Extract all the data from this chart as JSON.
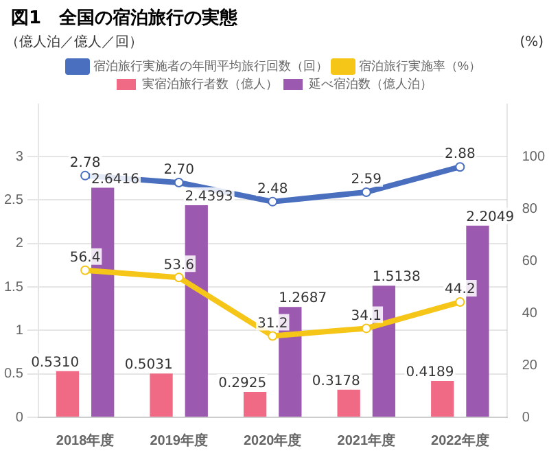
{
  "chart_data": {
    "type": "bar",
    "title": "図1　全国の宿泊旅行の実態",
    "ylabel": "（億人泊／億人／回）",
    "y2label": "(%)",
    "categories": [
      "2018年度",
      "2019年度",
      "2020年度",
      "2021年度",
      "2022年度"
    ],
    "series": [
      {
        "name": "実宿泊旅行者数（億人）",
        "color": "#f06a85",
        "values": [
          0.531,
          0.5031,
          0.2925,
          0.3178,
          0.4189
        ],
        "value_labels": [
          "0.5310",
          "0.5031",
          "0.2925",
          "0.3178",
          "0.4189"
        ]
      },
      {
        "name": "延べ宿泊数（億人泊）",
        "color": "#9b59b0",
        "values": [
          2.6416,
          2.4393,
          1.2687,
          1.5138,
          2.2049
        ],
        "value_labels": [
          "2.6416",
          "2.4393",
          "1.2687",
          "1.5138",
          "2.2049"
        ]
      },
      {
        "name": "宿泊旅行実施者の年間平均旅行回数（回）",
        "type": "line",
        "color": "#4a6fbf",
        "values": [
          2.78,
          2.7,
          2.48,
          2.59,
          2.88
        ],
        "value_labels": [
          "2.78",
          "2.70",
          "2.48",
          "2.59",
          "2.88"
        ]
      },
      {
        "name": "宿泊旅行実施率（%）",
        "type": "line",
        "axis": "y2",
        "color": "#f5c518",
        "values": [
          56.4,
          53.6,
          31.2,
          34.1,
          44.2
        ],
        "value_labels": [
          "56.4",
          "53.6",
          "31.2",
          "34.1",
          "44.2"
        ]
      }
    ],
    "ylim": [
      0,
      3.6
    ],
    "yticks": [
      0,
      0.5,
      1,
      1.5,
      2,
      2.5,
      3
    ],
    "y2lim": [
      0,
      120
    ],
    "y2ticks": [
      0,
      20,
      40,
      60,
      80,
      100
    ],
    "grid": "y",
    "legend": "top",
    "marker": "circle"
  }
}
